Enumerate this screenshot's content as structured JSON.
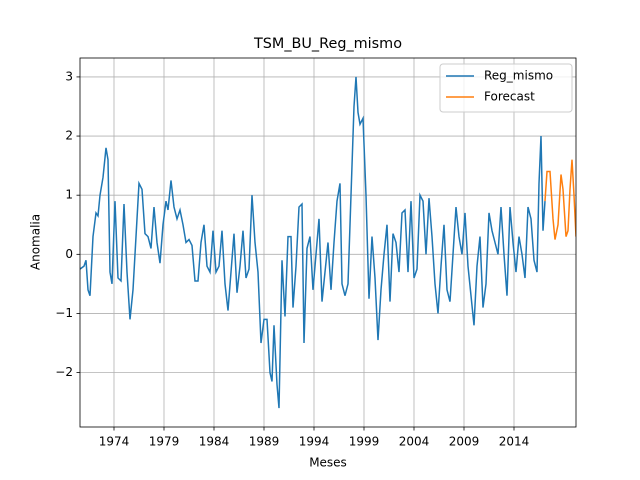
{
  "chart_data": {
    "type": "line",
    "title": "TSM_BU_Reg_mismo",
    "x_label": "Meses",
    "y_label": "Anomalia",
    "xlim": [
      1970.6,
      2020.2
    ],
    "ylim": [
      -2.92,
      3.32
    ],
    "xticks": [
      1974,
      1979,
      1984,
      1989,
      1994,
      1999,
      2004,
      2009,
      2014
    ],
    "yticks": [
      {
        "value": -2,
        "label": "−2"
      },
      {
        "value": -1,
        "label": "−1"
      },
      0,
      1,
      2,
      3
    ],
    "grid": true,
    "legend": "upper right",
    "series": [
      {
        "name": "Reg_mismo",
        "color": "#1f77b4",
        "x": [
          1970.6,
          1971.0,
          1971.2,
          1971.4,
          1971.6,
          1971.9,
          1972.2,
          1972.4,
          1972.6,
          1972.9,
          1973.2,
          1973.4,
          1973.6,
          1973.8,
          1974.1,
          1974.4,
          1974.7,
          1975.0,
          1975.3,
          1975.6,
          1975.9,
          1976.2,
          1976.5,
          1976.8,
          1977.1,
          1977.4,
          1977.7,
          1978.0,
          1978.3,
          1978.6,
          1978.9,
          1979.2,
          1979.4,
          1979.7,
          1980.0,
          1980.3,
          1980.6,
          1980.9,
          1981.2,
          1981.5,
          1981.8,
          1982.1,
          1982.4,
          1982.7,
          1983.0,
          1983.3,
          1983.6,
          1983.9,
          1984.2,
          1984.5,
          1984.8,
          1985.1,
          1985.4,
          1985.7,
          1986.0,
          1986.3,
          1986.6,
          1986.9,
          1987.2,
          1987.5,
          1987.8,
          1988.1,
          1988.4,
          1988.7,
          1989.0,
          1989.3,
          1989.6,
          1989.8,
          1990.0,
          1990.3,
          1990.5,
          1990.8,
          1991.1,
          1991.4,
          1991.7,
          1991.9,
          1992.2,
          1992.5,
          1992.8,
          1993.0,
          1993.3,
          1993.6,
          1993.9,
          1994.2,
          1994.5,
          1994.8,
          1995.1,
          1995.4,
          1995.7,
          1996.0,
          1996.3,
          1996.6,
          1996.8,
          1997.1,
          1997.4,
          1997.7,
          1998.0,
          1998.2,
          1998.4,
          1998.6,
          1998.9,
          1999.2,
          1999.5,
          1999.8,
          2000.1,
          2000.4,
          2000.7,
          2001.0,
          2001.3,
          2001.6,
          2001.9,
          2002.2,
          2002.5,
          2002.8,
          2003.1,
          2003.4,
          2003.7,
          2004.0,
          2004.3,
          2004.6,
          2004.9,
          2005.2,
          2005.5,
          2005.8,
          2006.1,
          2006.4,
          2006.7,
          2007.0,
          2007.3,
          2007.6,
          2007.9,
          2008.2,
          2008.5,
          2008.8,
          2009.1,
          2009.4,
          2009.7,
          2010.0,
          2010.3,
          2010.6,
          2010.9,
          2011.2,
          2011.5,
          2011.8,
          2012.1,
          2012.4,
          2012.7,
          2013.0,
          2013.3,
          2013.6,
          2013.9,
          2014.2,
          2014.5,
          2014.8,
          2015.1,
          2015.4,
          2015.7,
          2016.0,
          2016.3,
          2016.5,
          2016.7,
          2016.9,
          2017.1
        ],
        "values": [
          -0.25,
          -0.2,
          -0.1,
          -0.6,
          -0.7,
          0.3,
          0.7,
          0.65,
          1.0,
          1.3,
          1.8,
          1.6,
          -0.3,
          -0.5,
          0.9,
          -0.4,
          -0.45,
          0.85,
          -0.3,
          -1.1,
          -0.6,
          0.3,
          1.2,
          1.1,
          0.35,
          0.3,
          0.1,
          0.8,
          0.2,
          -0.15,
          0.5,
          0.9,
          0.75,
          1.25,
          0.8,
          0.6,
          0.75,
          0.5,
          0.2,
          0.25,
          0.15,
          -0.45,
          -0.45,
          0.2,
          0.5,
          -0.2,
          -0.3,
          0.4,
          -0.3,
          -0.2,
          0.4,
          -0.5,
          -0.95,
          -0.3,
          0.35,
          -0.65,
          -0.2,
          0.4,
          -0.4,
          -0.25,
          1.0,
          0.2,
          -0.3,
          -1.5,
          -1.1,
          -1.1,
          -2.0,
          -2.15,
          -1.2,
          -2.2,
          -2.6,
          -0.1,
          -1.05,
          0.3,
          0.3,
          -0.9,
          -0.2,
          0.8,
          0.85,
          -1.5,
          0.1,
          0.3,
          -0.6,
          0.0,
          0.6,
          -0.8,
          -0.3,
          0.2,
          -0.6,
          0.2,
          0.9,
          1.2,
          -0.5,
          -0.7,
          -0.5,
          1.0,
          2.5,
          3.0,
          2.4,
          2.2,
          2.3,
          1.0,
          -0.75,
          0.3,
          -0.4,
          -1.45,
          -0.6,
          0.0,
          0.5,
          -0.8,
          0.35,
          0.2,
          -0.3,
          0.7,
          0.75,
          -0.3,
          0.9,
          -0.4,
          -0.25,
          1.0,
          0.9,
          0.0,
          0.95,
          0.3,
          -0.5,
          -1.0,
          -0.2,
          0.5,
          -0.6,
          -0.8,
          0.0,
          0.8,
          0.3,
          0.0,
          0.7,
          -0.2,
          -0.7,
          -1.2,
          -0.2,
          0.3,
          -0.9,
          -0.5,
          0.7,
          0.4,
          0.2,
          0.0,
          0.8,
          0.0,
          -0.7,
          0.8,
          0.2,
          -0.3,
          0.3,
          0.0,
          -0.4,
          0.8,
          0.6,
          -0.1,
          -0.3,
          1.2,
          2.0,
          0.4,
          0.9
        ]
      },
      {
        "name": "Forecast",
        "color": "#ff7f0e",
        "x": [
          2017.1,
          2017.3,
          2017.6,
          2017.9,
          2018.1,
          2018.4,
          2018.7,
          2018.9,
          2019.2,
          2019.4,
          2019.6,
          2019.8,
          2020.0,
          2020.2
        ],
        "values": [
          0.9,
          1.4,
          1.4,
          0.6,
          0.25,
          0.5,
          1.35,
          1.1,
          0.3,
          0.4,
          1.1,
          1.6,
          1.0,
          0.3
        ]
      }
    ]
  }
}
